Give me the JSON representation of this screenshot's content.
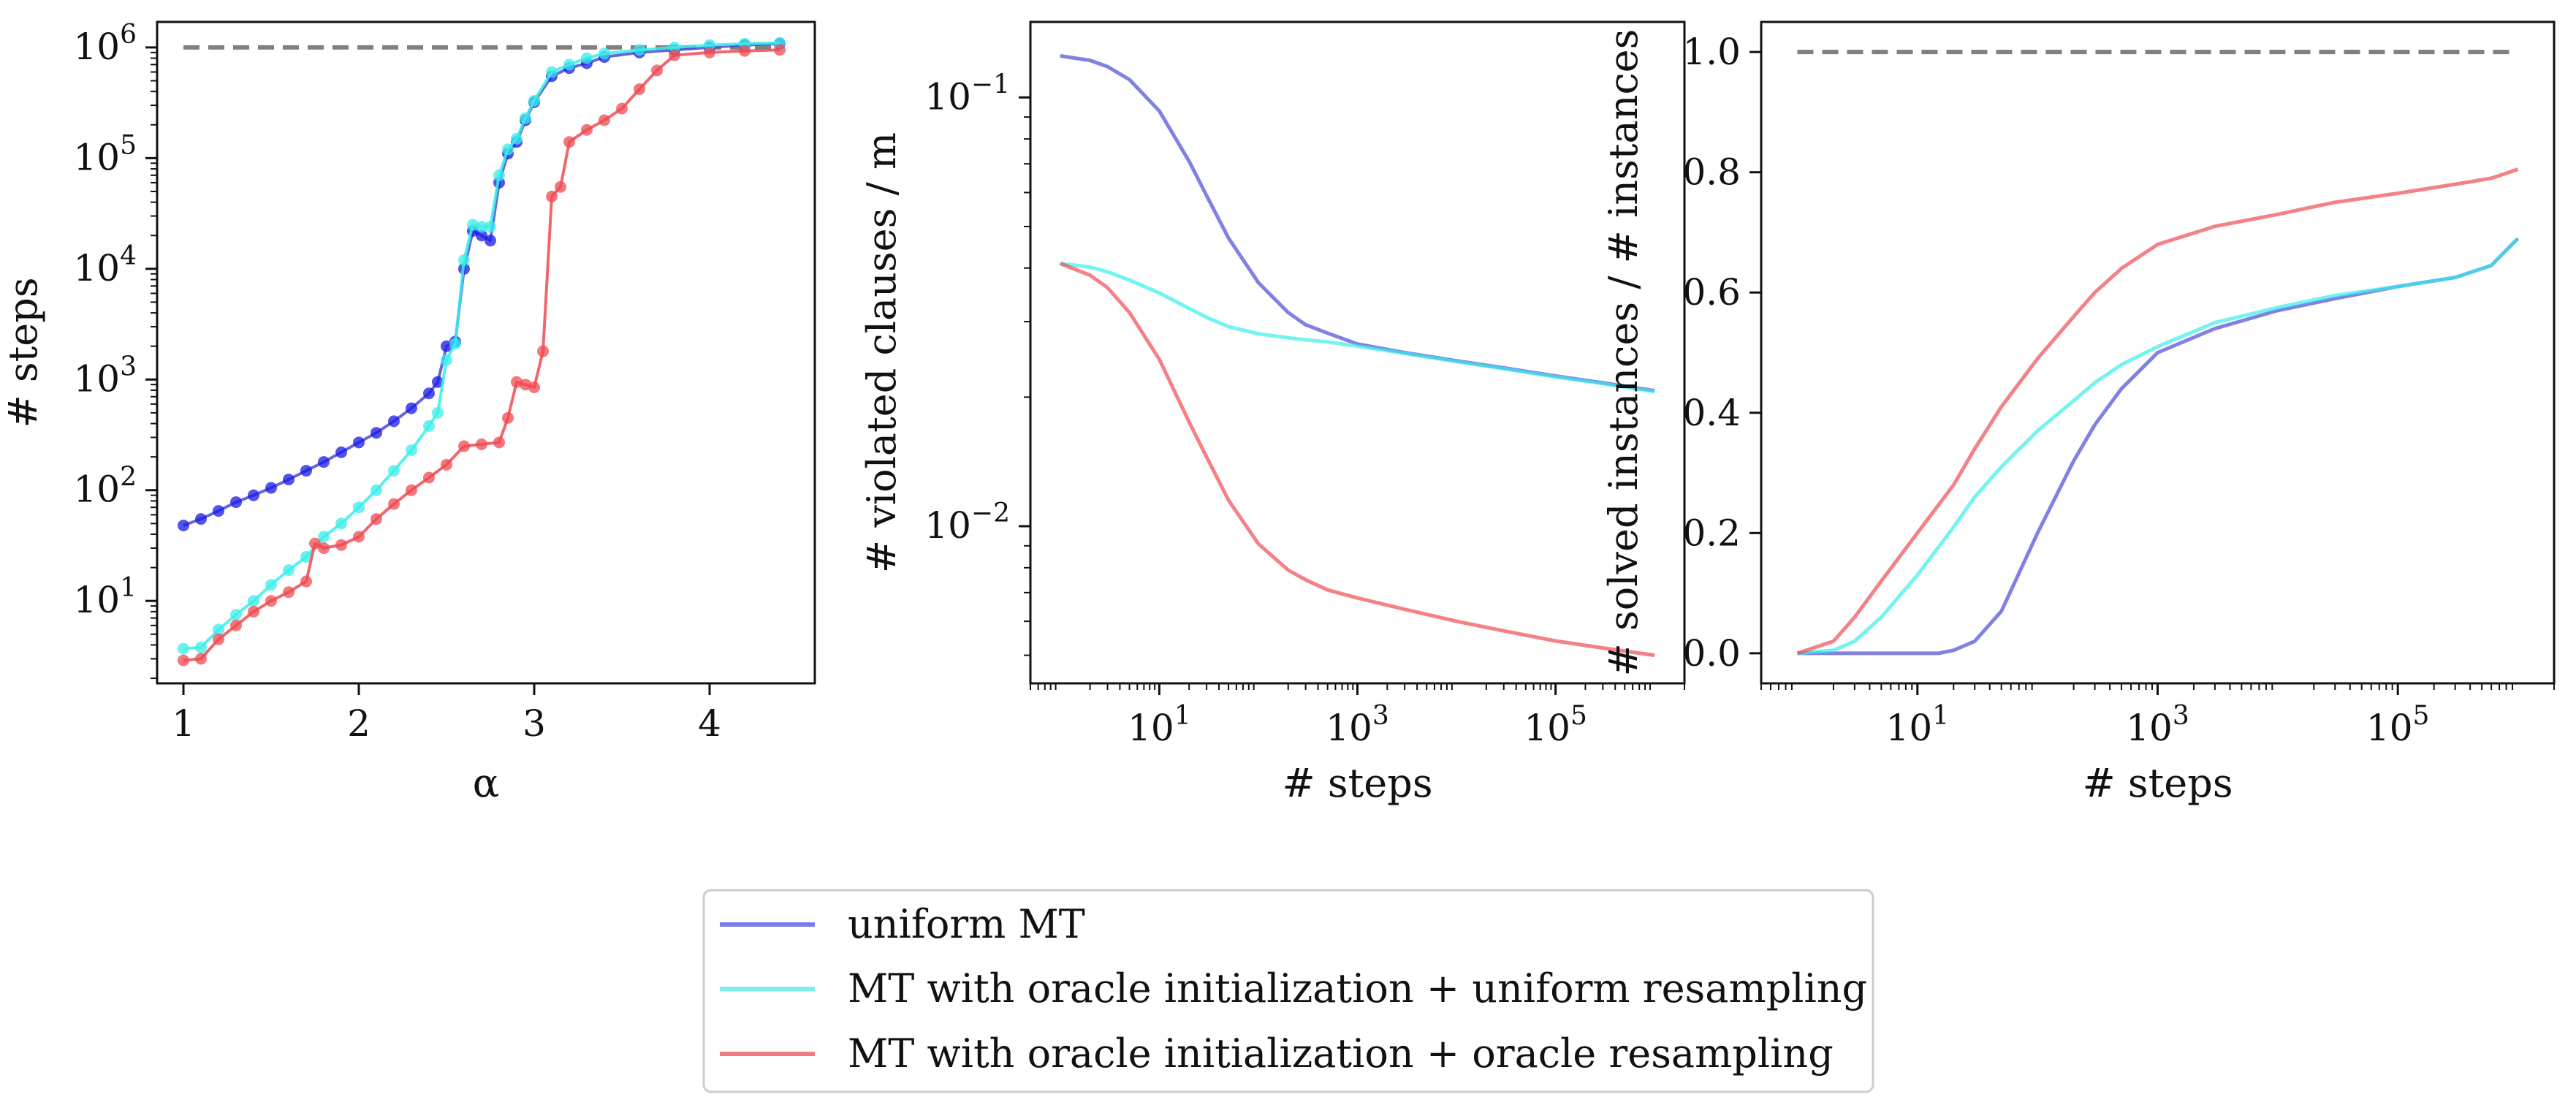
{
  "colors": {
    "uniform": "#4b4bd8",
    "uniform_points": "#1a1ae6",
    "oracle_init": "#39eeea",
    "oracle_both": "#ee4b52",
    "reference": "#808080"
  },
  "legend": {
    "entries": [
      {
        "label": "uniform MT",
        "color": "#7b7bea"
      },
      {
        "label": "MT with oracle initialization + uniform resampling",
        "color": "#79f1ef"
      },
      {
        "label": "MT with oracle initialization + oracle resampling",
        "color": "#f07c82"
      }
    ]
  },
  "chart_data": [
    {
      "type": "line",
      "subtype": "line-with-markers",
      "xlabel": "α",
      "ylabel": "# steps",
      "xscale": "linear",
      "yscale": "log",
      "xlim": [
        0.85,
        4.6
      ],
      "ylim": [
        1.8,
        1700000
      ],
      "xticks": [
        {
          "value": 1,
          "label": "1"
        },
        {
          "value": 2,
          "label": "2"
        },
        {
          "value": 3,
          "label": "3"
        },
        {
          "value": 4,
          "label": "4"
        }
      ],
      "yticks": [
        {
          "value": 10,
          "base": "10",
          "exp": "1"
        },
        {
          "value": 100,
          "base": "10",
          "exp": "2"
        },
        {
          "value": 1000,
          "base": "10",
          "exp": "3"
        },
        {
          "value": 10000,
          "base": "10",
          "exp": "4"
        },
        {
          "value": 100000,
          "base": "10",
          "exp": "5"
        },
        {
          "value": 1000000,
          "base": "10",
          "exp": "6"
        }
      ],
      "reference_line": {
        "y": 1000000,
        "from_x": 1.0,
        "to_x": 4.4,
        "style": "dashed"
      },
      "series": [
        {
          "name": "uniform MT",
          "x": [
            1.0,
            1.1,
            1.2,
            1.3,
            1.4,
            1.5,
            1.6,
            1.7,
            1.8,
            1.9,
            2.0,
            2.1,
            2.2,
            2.3,
            2.4,
            2.45,
            2.5,
            2.55,
            2.6,
            2.65,
            2.7,
            2.75,
            2.8,
            2.85,
            2.9,
            2.95,
            3.0,
            3.1,
            3.2,
            3.3,
            3.4,
            3.6,
            3.8,
            4.0,
            4.2,
            4.4
          ],
          "y": [
            48,
            55,
            65,
            78,
            90,
            105,
            125,
            150,
            180,
            220,
            270,
            330,
            420,
            550,
            750,
            950,
            2000,
            2200,
            10000,
            22000,
            20000,
            18000,
            60000,
            110000,
            140000,
            220000,
            320000,
            550000,
            650000,
            720000,
            820000,
            900000,
            950000,
            1000000,
            1050000,
            1080000
          ]
        },
        {
          "name": "MT with oracle initialization + uniform resampling",
          "x": [
            1.0,
            1.1,
            1.2,
            1.3,
            1.4,
            1.5,
            1.6,
            1.7,
            1.8,
            1.9,
            2.0,
            2.1,
            2.2,
            2.3,
            2.4,
            2.45,
            2.5,
            2.55,
            2.6,
            2.65,
            2.7,
            2.75,
            2.8,
            2.85,
            2.9,
            2.95,
            3.0,
            3.1,
            3.2,
            3.3,
            3.4,
            3.6,
            3.8,
            4.0,
            4.2,
            4.4
          ],
          "y": [
            3.7,
            3.8,
            5.5,
            7.5,
            10,
            14,
            19,
            25,
            38,
            50,
            70,
            100,
            150,
            230,
            380,
            500,
            1500,
            2100,
            12000,
            25000,
            24000,
            24000,
            70000,
            120000,
            150000,
            230000,
            330000,
            600000,
            700000,
            800000,
            880000,
            950000,
            1000000,
            1050000,
            1080000,
            1100000
          ]
        },
        {
          "name": "MT with oracle initialization + oracle resampling",
          "x": [
            1.0,
            1.1,
            1.2,
            1.3,
            1.4,
            1.5,
            1.6,
            1.7,
            1.75,
            1.8,
            1.9,
            2.0,
            2.1,
            2.2,
            2.3,
            2.4,
            2.5,
            2.6,
            2.7,
            2.8,
            2.85,
            2.9,
            2.95,
            3.0,
            3.05,
            3.1,
            3.15,
            3.2,
            3.3,
            3.4,
            3.5,
            3.6,
            3.7,
            3.8,
            4.0,
            4.2,
            4.4
          ],
          "y": [
            2.9,
            3.0,
            4.5,
            6.0,
            8.0,
            10,
            12,
            15,
            33,
            30,
            32,
            38,
            55,
            75,
            100,
            130,
            170,
            250,
            260,
            270,
            450,
            950,
            900,
            850,
            1800,
            45000,
            55000,
            140000,
            180000,
            220000,
            280000,
            420000,
            620000,
            850000,
            900000,
            930000,
            950000
          ]
        }
      ]
    },
    {
      "type": "line",
      "xlabel": "# steps",
      "ylabel": "# violated clauses / m",
      "xscale": "log",
      "yscale": "log",
      "xlim": [
        0.5,
        2000000
      ],
      "ylim": [
        0.0043,
        0.15
      ],
      "xticks": [
        {
          "value": 10,
          "base": "10",
          "exp": "1"
        },
        {
          "value": 1000,
          "base": "10",
          "exp": "3"
        },
        {
          "value": 100000,
          "base": "10",
          "exp": "5"
        }
      ],
      "yticks": [
        {
          "value": 0.1,
          "base": "10",
          "exp": "−1"
        },
        {
          "value": 0.01,
          "base": "10",
          "exp": "−2"
        }
      ],
      "series": [
        {
          "name": "uniform MT",
          "x": [
            1,
            2,
            3,
            5,
            10,
            20,
            30,
            50,
            100,
            200,
            300,
            500,
            1000,
            3000,
            10000,
            30000,
            100000,
            300000,
            1000000
          ],
          "y": [
            0.125,
            0.122,
            0.118,
            0.11,
            0.093,
            0.071,
            0.059,
            0.047,
            0.037,
            0.0315,
            0.0295,
            0.0282,
            0.0266,
            0.0254,
            0.0243,
            0.0234,
            0.0224,
            0.0216,
            0.0207
          ]
        },
        {
          "name": "MT with oracle initialization + uniform resampling",
          "x": [
            1,
            2,
            3,
            5,
            10,
            20,
            30,
            50,
            100,
            200,
            300,
            500,
            1000,
            3000,
            10000,
            30000,
            100000,
            300000,
            1000000
          ],
          "y": [
            0.041,
            0.0402,
            0.0392,
            0.0375,
            0.035,
            0.0322,
            0.0307,
            0.0292,
            0.0281,
            0.0275,
            0.0272,
            0.0269,
            0.0263,
            0.0253,
            0.0242,
            0.0233,
            0.0223,
            0.0215,
            0.0206
          ]
        },
        {
          "name": "MT with oracle initialization + oracle resampling",
          "x": [
            1,
            2,
            3,
            5,
            10,
            20,
            30,
            50,
            100,
            200,
            300,
            500,
            1000,
            3000,
            10000,
            30000,
            100000,
            300000,
            1000000
          ],
          "y": [
            0.041,
            0.0385,
            0.036,
            0.0315,
            0.0245,
            0.0175,
            0.0145,
            0.0115,
            0.0091,
            0.0079,
            0.0075,
            0.0071,
            0.0068,
            0.0064,
            0.006,
            0.0057,
            0.0054,
            0.0052,
            0.005
          ]
        }
      ]
    },
    {
      "type": "line",
      "xlabel": "# steps",
      "ylabel": "# solved instances / # instances",
      "xscale": "log",
      "yscale": "linear",
      "xlim": [
        0.5,
        2000000
      ],
      "ylim": [
        -0.05,
        1.05
      ],
      "xticks": [
        {
          "value": 10,
          "base": "10",
          "exp": "1"
        },
        {
          "value": 1000,
          "base": "10",
          "exp": "3"
        },
        {
          "value": 100000,
          "base": "10",
          "exp": "5"
        }
      ],
      "yticks": [
        {
          "value": 0.0,
          "label": "0.0"
        },
        {
          "value": 0.2,
          "label": "0.2"
        },
        {
          "value": 0.4,
          "label": "0.4"
        },
        {
          "value": 0.6,
          "label": "0.6"
        },
        {
          "value": 0.8,
          "label": "0.8"
        },
        {
          "value": 1.0,
          "label": "1.0"
        }
      ],
      "reference_line": {
        "y": 1.0,
        "from_x": 1,
        "to_x": 1000000,
        "style": "dashed"
      },
      "series": [
        {
          "name": "uniform MT",
          "x": [
            1,
            5,
            10,
            15,
            20,
            30,
            50,
            100,
            200,
            300,
            500,
            1000,
            3000,
            10000,
            30000,
            100000,
            300000,
            600000,
            1000000
          ],
          "y": [
            0.0,
            0.0,
            0.0,
            0.0,
            0.005,
            0.02,
            0.07,
            0.2,
            0.32,
            0.38,
            0.44,
            0.5,
            0.54,
            0.57,
            0.59,
            0.61,
            0.625,
            0.645,
            0.69
          ]
        },
        {
          "name": "MT with oracle initialization + uniform resampling",
          "x": [
            1,
            2,
            3,
            5,
            10,
            20,
            30,
            50,
            100,
            200,
            300,
            500,
            1000,
            3000,
            10000,
            30000,
            100000,
            300000,
            600000,
            1000000
          ],
          "y": [
            0.0,
            0.005,
            0.02,
            0.06,
            0.13,
            0.21,
            0.26,
            0.31,
            0.37,
            0.42,
            0.45,
            0.48,
            0.51,
            0.55,
            0.575,
            0.595,
            0.61,
            0.625,
            0.645,
            0.69
          ]
        },
        {
          "name": "MT with oracle initialization + oracle resampling",
          "x": [
            1,
            2,
            3,
            5,
            10,
            20,
            30,
            50,
            100,
            200,
            300,
            500,
            1000,
            3000,
            10000,
            30000,
            100000,
            300000,
            600000,
            1000000
          ],
          "y": [
            0.0,
            0.02,
            0.06,
            0.12,
            0.2,
            0.28,
            0.34,
            0.41,
            0.49,
            0.56,
            0.6,
            0.64,
            0.68,
            0.71,
            0.73,
            0.75,
            0.765,
            0.78,
            0.79,
            0.805
          ]
        }
      ]
    }
  ]
}
